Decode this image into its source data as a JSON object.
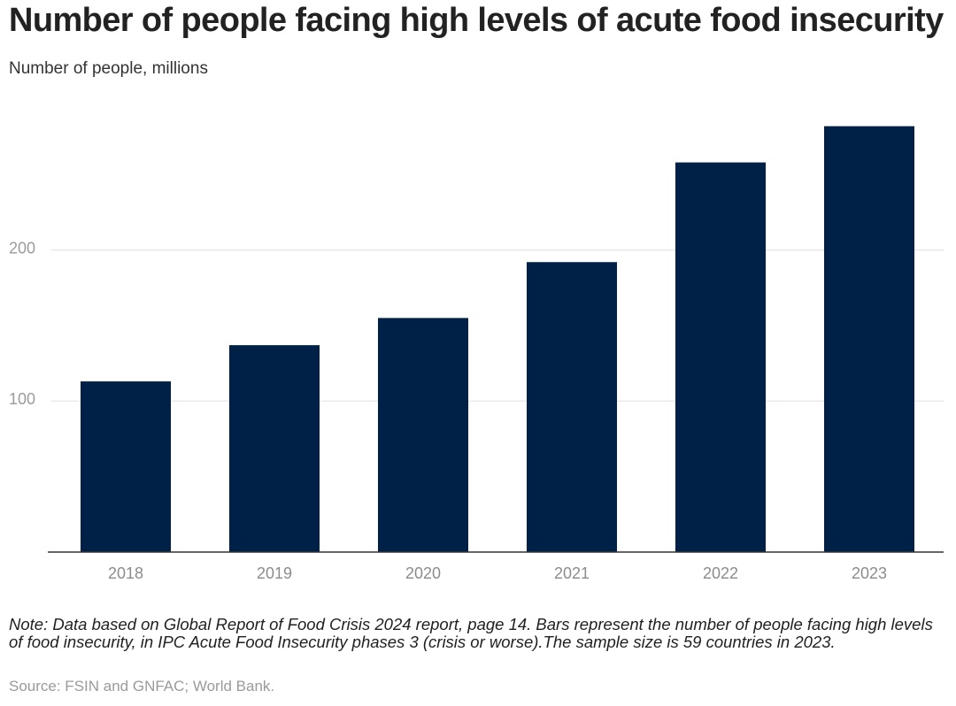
{
  "title": "Number of people facing high levels of acute food insecurity",
  "subtitle": "Number of people, millions",
  "chart_data": {
    "type": "bar",
    "categories": [
      "2018",
      "2019",
      "2020",
      "2021",
      "2022",
      "2023"
    ],
    "values": [
      113,
      137,
      155,
      192,
      258,
      282
    ],
    "yticks": [
      100,
      200
    ],
    "ylim": [
      0,
      300
    ],
    "bar_color": "#002147",
    "grid_color": "#e5e5e5",
    "axis_color": "#333333",
    "tick_label_color": "#9b9b9b",
    "xlabel": "",
    "ylabel": "Number of people, millions",
    "grid": true
  },
  "note": "Note: Data based on Global Report of Food Crisis 2024 report, page 14. Bars represent the number of people facing high levels of food insecurity, in IPC Acute Food Insecurity phases 3 (crisis or worse).The sample size is 59 countries in 2023.",
  "source": "Source: FSIN and GNFAC; World Bank."
}
